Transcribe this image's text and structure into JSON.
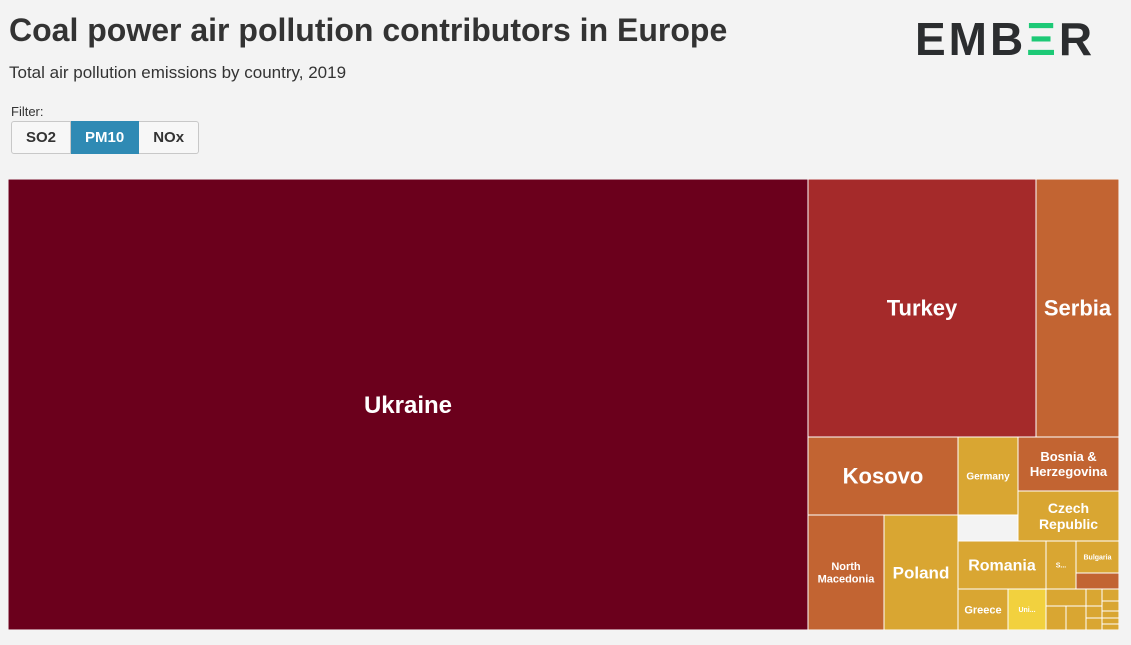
{
  "header": {
    "title": "Coal power air pollution contributors in Europe",
    "subtitle": "Total air pollution emissions by country, 2019",
    "logo_main": "EMB",
    "logo_accent": "Ξ",
    "logo_end": "R"
  },
  "filter": {
    "label": "Filter:",
    "options": [
      "SO2",
      "PM10",
      "NOx"
    ],
    "selected": "PM10"
  },
  "colors": {
    "accent": "#2f8ab4",
    "logo_green": "#1dc976",
    "tile_border": "#ffffff"
  },
  "chart_data": {
    "type": "treemap",
    "title": "Coal power air pollution contributors in Europe",
    "subtitle": "Total air pollution emissions by country, 2019",
    "metric": "PM10",
    "year": 2019,
    "relative_share_pct_estimated": true,
    "items": [
      {
        "name": "Ukraine",
        "label": "Ukraine",
        "value": 69.9,
        "color": "#6b001c"
      },
      {
        "name": "Turkey",
        "label": "Turkey",
        "value": 10.1,
        "color": "#a52a2a"
      },
      {
        "name": "Serbia",
        "label": "Serbia",
        "value": 3.6,
        "color": "#c26432"
      },
      {
        "name": "Kosovo",
        "label": "Kosovo",
        "value": 2.1,
        "color": "#c26432"
      },
      {
        "name": "Germany",
        "label": "Germany",
        "value": 1.6,
        "color": "#d9a632"
      },
      {
        "name": "Bosnia & Herzegovina",
        "label": "Bosnia & Herzegovina",
        "value": 1.3,
        "color": "#c26432"
      },
      {
        "name": "Czech Republic",
        "label": "Czech Republic",
        "value": 1.3,
        "color": "#d9a632"
      },
      {
        "name": "North Macedonia",
        "label": "North Macedonia",
        "value": 2.0,
        "color": "#c26432"
      },
      {
        "name": "Poland",
        "label": "Poland",
        "value": 1.9,
        "color": "#d9a632"
      },
      {
        "name": "Romania",
        "label": "Romania",
        "value": 1.1,
        "color": "#d9a632"
      },
      {
        "name": "Greece",
        "label": "Greece",
        "value": 1.0,
        "color": "#d9a632"
      },
      {
        "name": "Uni...",
        "label": "Uni...",
        "value": 0.7,
        "color": "#f2d13e"
      },
      {
        "name": "S...",
        "label": "S...",
        "value": 0.6,
        "color": "#d9a632"
      },
      {
        "name": "Bulgaria",
        "label": "Bulgaria",
        "value": 0.5,
        "color": "#d9a632"
      },
      {
        "name": "",
        "label": "",
        "value": 0.3,
        "color": "#c26432"
      },
      {
        "name": "",
        "label": "",
        "value": 0.2,
        "color": "#d9a632"
      },
      {
        "name": "",
        "label": "",
        "value": 0.15,
        "color": "#d9a632"
      },
      {
        "name": "",
        "label": "",
        "value": 0.15,
        "color": "#d9a632"
      },
      {
        "name": "",
        "label": "",
        "value": 0.1,
        "color": "#d9a632"
      },
      {
        "name": "",
        "label": "",
        "value": 0.1,
        "color": "#d9a632"
      },
      {
        "name": "",
        "label": "",
        "value": 0.1,
        "color": "#d9a632"
      },
      {
        "name": "",
        "label": "",
        "value": 0.1,
        "color": "#d9a632"
      },
      {
        "name": "",
        "label": "",
        "value": 0.05,
        "color": "#d9a632"
      },
      {
        "name": "",
        "label": "",
        "value": 0.05,
        "color": "#d9a632"
      },
      {
        "name": "",
        "label": "",
        "value": 0.05,
        "color": "#d9a632"
      },
      {
        "name": "",
        "label": "",
        "value": 0.05,
        "color": "#d9a632"
      }
    ]
  }
}
